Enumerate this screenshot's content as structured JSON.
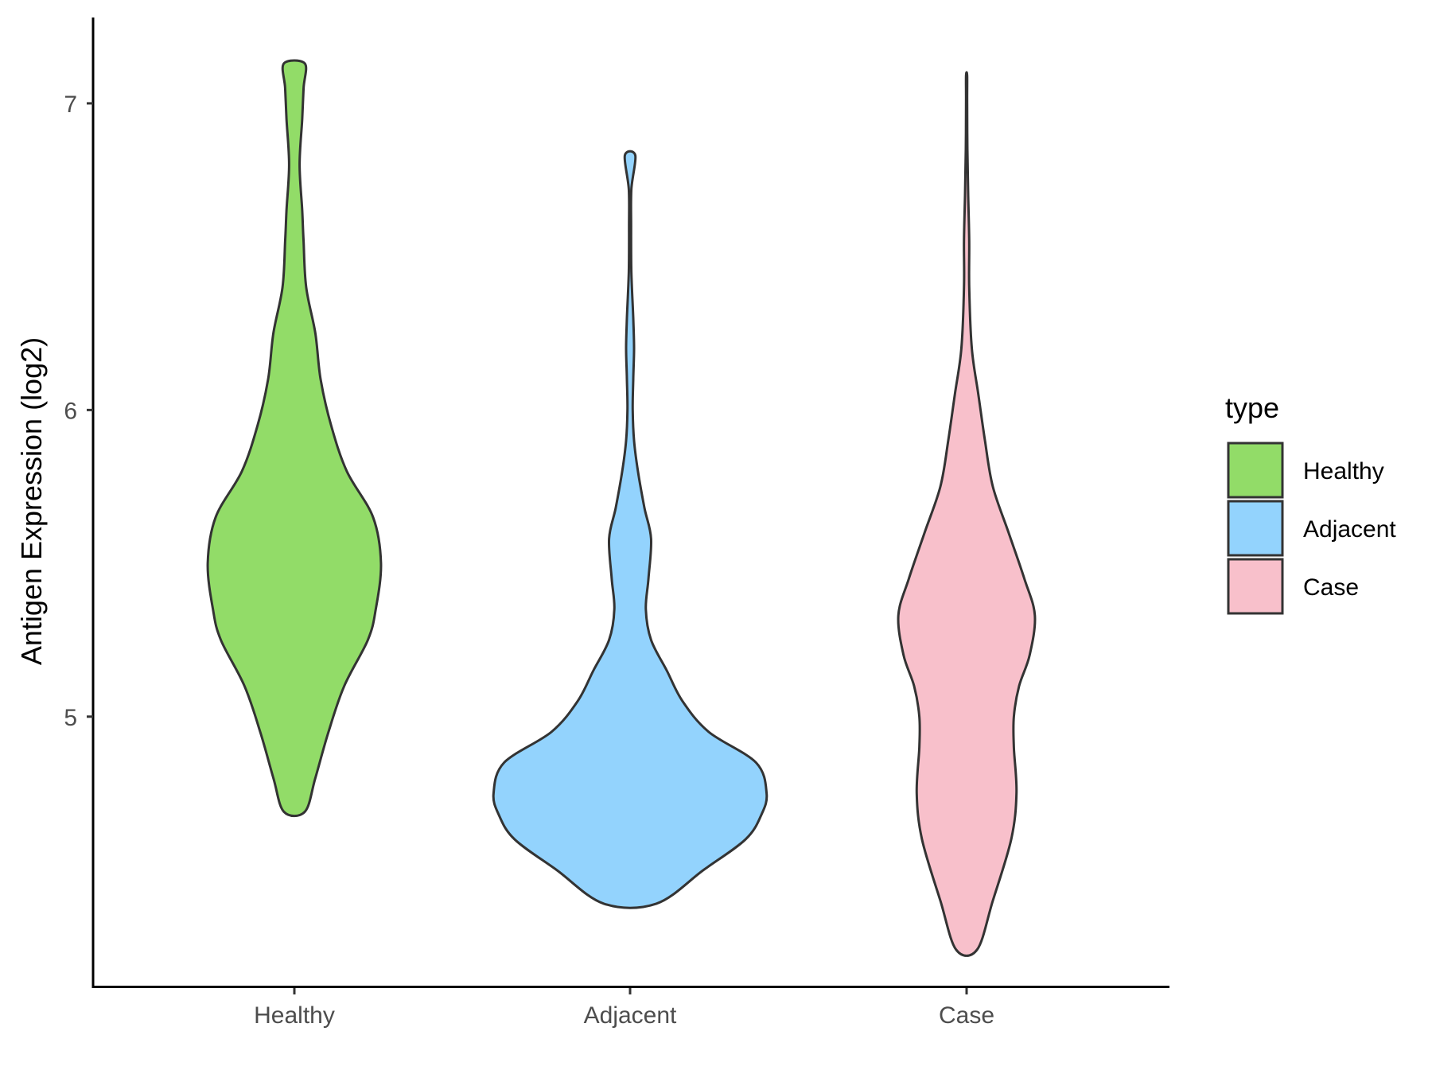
{
  "chart_data": {
    "type": "violin",
    "ylabel": "Antigen Expression (log2)",
    "xlabel": "",
    "ylim": [
      4.12,
      7.28
    ],
    "yticks": [
      5,
      6,
      7
    ],
    "categories": [
      "Healthy",
      "Adjacent",
      "Case"
    ],
    "legend": {
      "title": "type",
      "position": "right",
      "items": [
        {
          "label": "Healthy",
          "color": "#92DC68"
        },
        {
          "label": "Adjacent",
          "color": "#93D3FD"
        },
        {
          "label": "Case",
          "color": "#F8C0CB"
        }
      ]
    },
    "grid": false,
    "outline_color": "#333333",
    "series": [
      {
        "name": "Healthy",
        "color": "#92DC68",
        "ymin": 4.69,
        "ymax": 7.13,
        "profile": [
          [
            4.69,
            0.04
          ],
          [
            4.8,
            0.08
          ],
          [
            4.95,
            0.13
          ],
          [
            5.1,
            0.19
          ],
          [
            5.25,
            0.28
          ],
          [
            5.35,
            0.31
          ],
          [
            5.5,
            0.33
          ],
          [
            5.65,
            0.3
          ],
          [
            5.8,
            0.2
          ],
          [
            5.95,
            0.14
          ],
          [
            6.1,
            0.1
          ],
          [
            6.25,
            0.08
          ],
          [
            6.4,
            0.045
          ],
          [
            6.55,
            0.035
          ],
          [
            6.65,
            0.03
          ],
          [
            6.8,
            0.02
          ],
          [
            6.95,
            0.03
          ],
          [
            7.05,
            0.035
          ],
          [
            7.13,
            0.04
          ]
        ]
      },
      {
        "name": "Adjacent",
        "color": "#93D3FD",
        "ymin": 4.39,
        "ymax": 6.83,
        "profile": [
          [
            4.39,
            0.1
          ],
          [
            4.5,
            0.28
          ],
          [
            4.6,
            0.44
          ],
          [
            4.68,
            0.5
          ],
          [
            4.75,
            0.52
          ],
          [
            4.85,
            0.48
          ],
          [
            4.95,
            0.3
          ],
          [
            5.05,
            0.2
          ],
          [
            5.15,
            0.14
          ],
          [
            5.25,
            0.08
          ],
          [
            5.35,
            0.06
          ],
          [
            5.45,
            0.07
          ],
          [
            5.58,
            0.08
          ],
          [
            5.68,
            0.055
          ],
          [
            5.8,
            0.03
          ],
          [
            5.9,
            0.015
          ],
          [
            6.0,
            0.01
          ],
          [
            6.1,
            0.012
          ],
          [
            6.2,
            0.015
          ],
          [
            6.3,
            0.012
          ],
          [
            6.45,
            0.005
          ],
          [
            6.6,
            0.004
          ],
          [
            6.72,
            0.005
          ],
          [
            6.83,
            0.02
          ]
        ]
      },
      {
        "name": "Case",
        "color": "#F8C0CB",
        "ymin": 4.24,
        "ymax": 7.09,
        "profile": [
          [
            4.24,
            0.04
          ],
          [
            4.4,
            0.1
          ],
          [
            4.6,
            0.17
          ],
          [
            4.75,
            0.19
          ],
          [
            4.9,
            0.18
          ],
          [
            5.0,
            0.18
          ],
          [
            5.1,
            0.2
          ],
          [
            5.2,
            0.24
          ],
          [
            5.33,
            0.26
          ],
          [
            5.45,
            0.22
          ],
          [
            5.6,
            0.16
          ],
          [
            5.75,
            0.1
          ],
          [
            5.9,
            0.07
          ],
          [
            6.05,
            0.045
          ],
          [
            6.2,
            0.02
          ],
          [
            6.4,
            0.01
          ],
          [
            6.55,
            0.01
          ],
          [
            6.7,
            0.006
          ],
          [
            6.85,
            0.003
          ],
          [
            7.0,
            0.002
          ],
          [
            7.09,
            0.002
          ]
        ]
      }
    ]
  }
}
